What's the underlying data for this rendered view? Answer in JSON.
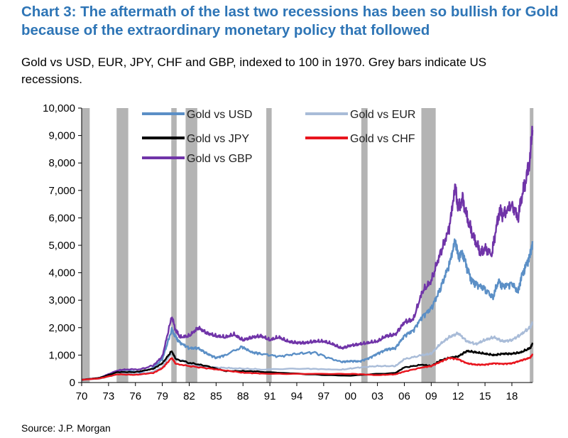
{
  "title": "Chart 3: The aftermath of the last two recessions has been so bullish for Gold because of the extraordinary monetary policy that followed",
  "subtitle": "Gold vs USD, EUR, JPY, CHF and GBP, indexed to 100 in 1970. Grey bars indicate US recessions.",
  "source": "Source: J.P. Morgan",
  "chart_data": {
    "type": "line",
    "ylim": [
      0,
      10000
    ],
    "xlim": [
      1970,
      2020.3
    ],
    "y_ticks": [
      0,
      1000,
      2000,
      3000,
      4000,
      5000,
      6000,
      7000,
      8000,
      9000,
      10000
    ],
    "y_tick_labels": [
      "0",
      "1,000",
      "2,000",
      "3,000",
      "4,000",
      "5,000",
      "6,000",
      "7,000",
      "8,000",
      "9,000",
      "10,000"
    ],
    "x_ticks": [
      1970,
      1973,
      1976,
      1979,
      1982,
      1985,
      1988,
      1991,
      1994,
      1997,
      2000,
      2003,
      2006,
      2009,
      2012,
      2015,
      2018
    ],
    "x_tick_labels": [
      "70",
      "73",
      "76",
      "79",
      "82",
      "85",
      "88",
      "91",
      "94",
      "97",
      "00",
      "03",
      "06",
      "09",
      "12",
      "15",
      "18"
    ],
    "recessions": [
      [
        1970.0,
        1970.9
      ],
      [
        1973.9,
        1975.2
      ],
      [
        1980.0,
        1980.6
      ],
      [
        1981.6,
        1982.9
      ],
      [
        1990.6,
        1991.2
      ],
      [
        2001.2,
        2001.9
      ],
      [
        2007.9,
        2009.5
      ],
      [
        2020.0,
        2020.4
      ]
    ],
    "series": [
      {
        "name": "Gold vs USD",
        "color": "#5b8fc6",
        "x": [
          1970,
          1972,
          1974,
          1975,
          1976.5,
          1978,
          1979,
          1980.05,
          1980.5,
          1981,
          1982,
          1983,
          1984,
          1985,
          1986,
          1987.9,
          1989,
          1990,
          1992,
          1994,
          1996,
          1997.5,
          1999,
          2000,
          2001,
          2002,
          2003,
          2004,
          2005,
          2006,
          2007,
          2008,
          2009,
          2010,
          2011,
          2011.7,
          2012,
          2012.5,
          2013,
          2013.5,
          2014,
          2015,
          2015.9,
          2016.5,
          2017,
          2018,
          2018.7,
          2019,
          2019.5,
          2020,
          2020.3
        ],
        "y": [
          100,
          160,
          430,
          460,
          360,
          540,
          850,
          1920,
          1650,
          1450,
          1250,
          1250,
          1050,
          900,
          1000,
          1300,
          1100,
          1050,
          950,
          1050,
          1100,
          900,
          750,
          780,
          770,
          880,
          1050,
          1200,
          1250,
          1700,
          1900,
          2400,
          2700,
          3400,
          4300,
          5200,
          4600,
          4700,
          4200,
          3700,
          3600,
          3400,
          3100,
          3700,
          3500,
          3600,
          3300,
          3800,
          4200,
          4600,
          5150
        ]
      },
      {
        "name": "Gold vs EUR",
        "color": "#a9bcd8",
        "x": [
          1970,
          1972,
          1974,
          1975,
          1976.5,
          1978,
          1979,
          1980.05,
          1980.5,
          1982,
          1983,
          1985,
          1987,
          1990,
          1995,
          1999,
          2001,
          2003,
          2005,
          2006,
          2008,
          2009,
          2010,
          2011,
          2012,
          2013,
          2014,
          2015,
          2016,
          2017,
          2018,
          2019,
          2020,
          2020.3
        ],
        "y": [
          100,
          140,
          300,
          320,
          290,
          400,
          560,
          1100,
          880,
          700,
          600,
          550,
          520,
          480,
          500,
          470,
          550,
          600,
          600,
          850,
          1000,
          1050,
          1400,
          1650,
          1800,
          1500,
          1400,
          1550,
          1650,
          1500,
          1550,
          1750,
          2000,
          2200
        ]
      },
      {
        "name": "Gold vs JPY",
        "color": "#000000",
        "x": [
          1970,
          1972,
          1974,
          1976,
          1978,
          1979,
          1980.05,
          1980.5,
          1982,
          1984,
          1986,
          1988,
          1990,
          1995,
          2000,
          2005,
          2006,
          2008,
          2009,
          2010,
          2011,
          2012,
          2013,
          2014,
          2015,
          2016,
          2017,
          2018,
          2019,
          2020,
          2020.3
        ],
        "y": [
          100,
          170,
          380,
          380,
          500,
          700,
          1150,
          850,
          720,
          600,
          420,
          420,
          400,
          300,
          250,
          350,
          550,
          650,
          600,
          800,
          900,
          950,
          1150,
          1100,
          1050,
          1000,
          1050,
          1050,
          1100,
          1250,
          1400
        ]
      },
      {
        "name": "Gold vs CHF",
        "color": "#e8151e",
        "x": [
          1970,
          1972,
          1974,
          1976,
          1978,
          1979,
          1980.05,
          1980.5,
          1982,
          1985,
          1988,
          1990,
          1995,
          2000,
          2003,
          2005,
          2006,
          2008,
          2009,
          2010,
          2011,
          2012,
          2013,
          2014,
          2015,
          2016,
          2017,
          2018,
          2019,
          2020,
          2020.3
        ],
        "y": [
          100,
          150,
          300,
          280,
          350,
          520,
          900,
          680,
          600,
          480,
          360,
          330,
          310,
          320,
          270,
          300,
          400,
          550,
          600,
          750,
          900,
          850,
          700,
          650,
          650,
          700,
          680,
          700,
          800,
          900,
          1000
        ]
      },
      {
        "name": "Gold vs GBP",
        "color": "#7034a8",
        "x": [
          1970,
          1972,
          1974,
          1975,
          1976.5,
          1978,
          1979,
          1980.05,
          1980.5,
          1981,
          1982,
          1983,
          1984,
          1985,
          1986,
          1987,
          1988,
          1989,
          1990,
          1991,
          1992,
          1993,
          1994,
          1995,
          1996,
          1997,
          1998,
          1999,
          2000,
          2001,
          2002,
          2003,
          2004,
          2005,
          2006,
          2007,
          2008,
          2009,
          2010,
          2011,
          2011.7,
          2012,
          2012.5,
          2013,
          2013.5,
          2014,
          2014.5,
          2015,
          2015.8,
          2016,
          2016.6,
          2017,
          2018,
          2018.7,
          2019,
          2019.5,
          2020,
          2020.3
        ],
        "y": [
          100,
          170,
          440,
          480,
          480,
          620,
          950,
          2400,
          1900,
          1650,
          1700,
          2000,
          1800,
          1700,
          1650,
          1750,
          1550,
          1650,
          1700,
          1550,
          1650,
          1500,
          1450,
          1450,
          1500,
          1500,
          1400,
          1250,
          1350,
          1400,
          1450,
          1500,
          1700,
          1750,
          2200,
          2300,
          3300,
          3700,
          4700,
          5600,
          7200,
          6300,
          6700,
          6000,
          5500,
          5100,
          4700,
          4900,
          4700,
          5200,
          6200,
          6100,
          6500,
          6000,
          6600,
          7300,
          8100,
          9200
        ]
      }
    ]
  }
}
